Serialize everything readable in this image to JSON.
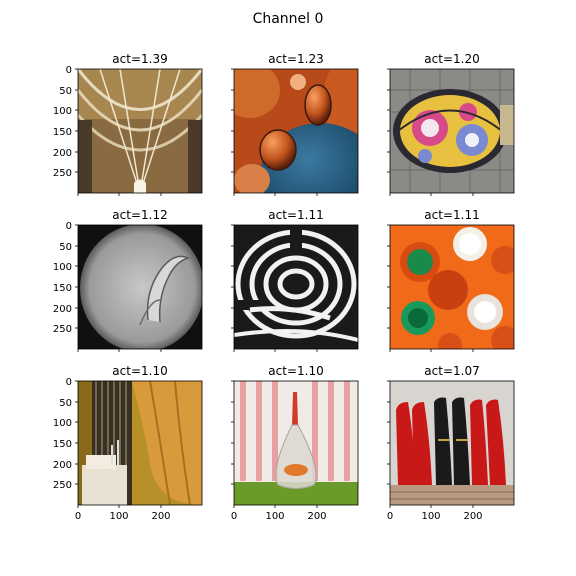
{
  "figure": {
    "title": "Channel 0"
  },
  "panels": [
    {
      "title": "act=1.39",
      "image": "gothic-cathedral-vaulted-ceiling"
    },
    {
      "title": "act=1.23",
      "image": "orange-and-blue-oil-bubbles"
    },
    {
      "title": "act=1.20",
      "image": "decorative-flower-manhole-cover"
    },
    {
      "title": "act=1.12",
      "image": "nematode-microscope-view"
    },
    {
      "title": "act=1.11",
      "image": "black-and-white-spiral-maze"
    },
    {
      "title": "act=1.11",
      "image": "orange-trays-with-green-and-white-cups"
    },
    {
      "title": "act=1.10",
      "image": "window-with-gold-curtain-and-armchair"
    },
    {
      "title": "act=1.10",
      "image": "goldfish-in-plastic-bag-on-grass"
    },
    {
      "title": "act=1.07",
      "image": "row-of-red-and-black-shoes"
    }
  ],
  "axes": {
    "y_ticks": [
      "0",
      "50",
      "100",
      "150",
      "200",
      "250"
    ],
    "x_ticks": [
      "0",
      "100",
      "200"
    ]
  },
  "colors": {
    "axis": "#000000",
    "background": "#ffffff"
  }
}
